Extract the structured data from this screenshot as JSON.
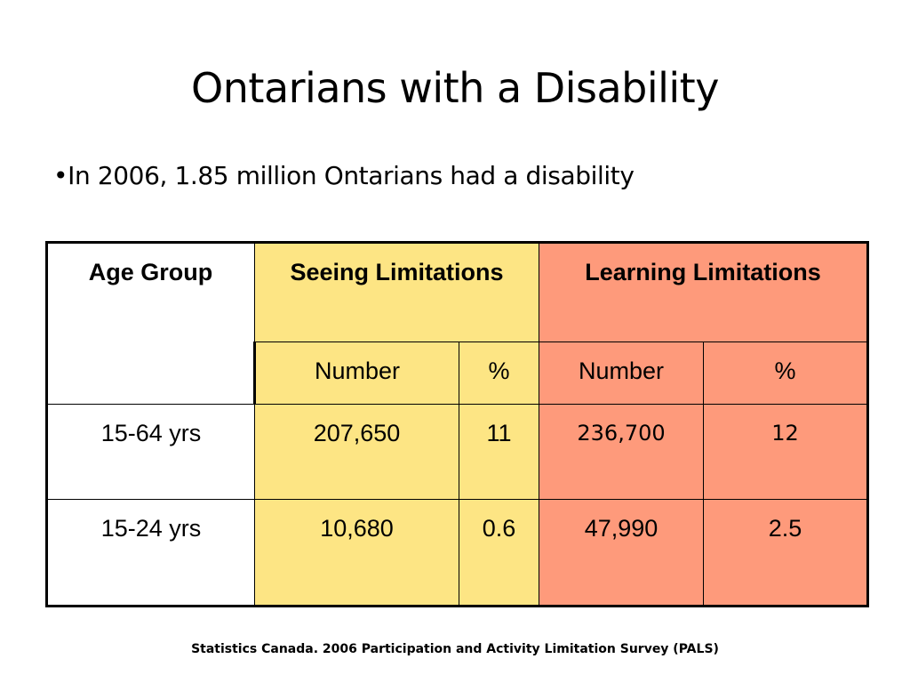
{
  "slide": {
    "title": "Ontarians with a Disability",
    "bullet": "•In 2006, 1.85 million Ontarians had a disability",
    "source": "Statistics Canada. 2006 Participation and Activity Limitation Survey (PALS)"
  },
  "table": {
    "headers": {
      "age_group": "Age Group",
      "seeing": "Seeing Limitations",
      "learning": "Learning Limitations",
      "seeing_number": "Number",
      "seeing_pct": "%",
      "learning_number": "Number",
      "learning_pct": "%"
    },
    "rows": [
      {
        "age": "15-64 yrs",
        "seeing_number": "207,650",
        "seeing_pct": "11",
        "learning_number": "236,700",
        "learning_pct": "12"
      },
      {
        "age": "15-24 yrs",
        "seeing_number": "10,680",
        "seeing_pct": "0.6",
        "learning_number": "47,990",
        "learning_pct": "2.5"
      }
    ]
  },
  "colors": {
    "seeing_fill": "#fde584",
    "learning_fill": "#fe9a7b",
    "border": "#000000"
  }
}
